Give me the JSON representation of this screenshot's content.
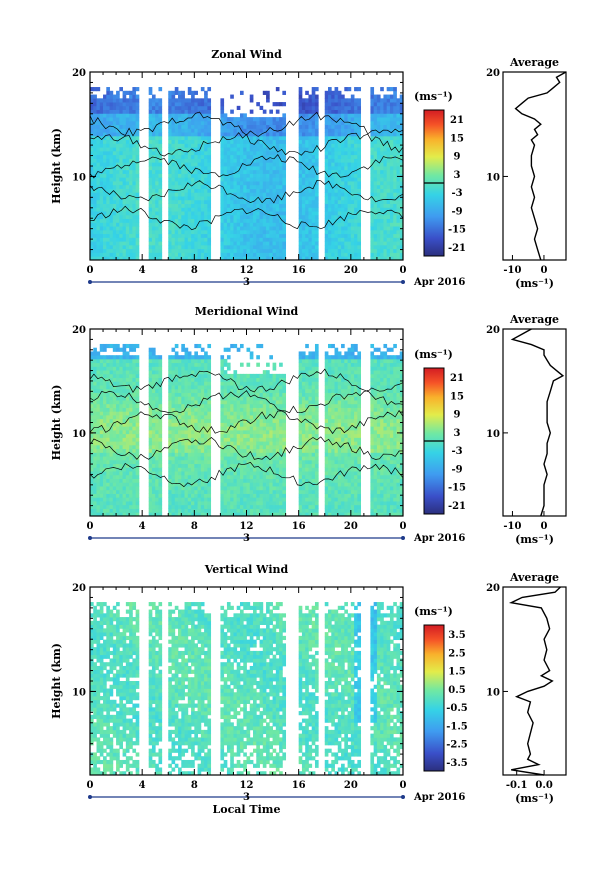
{
  "chart_data": [
    {
      "type": "heatmap",
      "title": "Zonal Wind",
      "ylabel": "Height (km)",
      "x_ticks": [
        "0",
        "4",
        "8",
        "12",
        "16",
        "20",
        "0"
      ],
      "y_ticks": [
        "20",
        "10"
      ],
      "xlim": [
        0,
        24
      ],
      "ylim": [
        2,
        20
      ],
      "date_marker": "3",
      "date_label": "Apr 2016",
      "colorbar": {
        "unit": "(ms⁻¹)",
        "ticks": [
          "21",
          "15",
          "9",
          "3",
          "-3",
          "-9",
          "-15",
          "-21"
        ],
        "range": [
          -24,
          24
        ]
      },
      "profile": {
        "title": "Average",
        "x_ticks": [
          "-10",
          "0"
        ],
        "xlabel": "(ms⁻¹)",
        "y_ticks": [
          "20",
          "10"
        ],
        "xlim": [
          -13,
          7
        ],
        "y": [
          2,
          3,
          4,
          5,
          6,
          7,
          8,
          9,
          10,
          11,
          12,
          13,
          13.5,
          14,
          14.5,
          15,
          15.5,
          16,
          16.5,
          17,
          17.5,
          18,
          18.5,
          19,
          19.5,
          20
        ],
        "value": [
          -1,
          -2,
          -3,
          -2,
          -3,
          -4,
          -3,
          -4,
          -3,
          -4,
          -4,
          -3,
          -4,
          -2,
          -3,
          -1,
          -3,
          -7,
          -9,
          -7,
          -5,
          1,
          3,
          5,
          4,
          7
        ]
      }
    },
    {
      "type": "heatmap",
      "title": "Meridional Wind",
      "ylabel": "Height (km)",
      "x_ticks": [
        "0",
        "4",
        "8",
        "12",
        "16",
        "20",
        "0"
      ],
      "y_ticks": [
        "20",
        "10"
      ],
      "xlim": [
        0,
        24
      ],
      "ylim": [
        2,
        20
      ],
      "date_marker": "3",
      "date_label": "Apr 2016",
      "colorbar": {
        "unit": "(ms⁻¹)",
        "ticks": [
          "21",
          "15",
          "9",
          "3",
          "-3",
          "-9",
          "-15",
          "-21"
        ],
        "range": [
          -24,
          24
        ]
      },
      "profile": {
        "title": "Average",
        "x_ticks": [
          "-10",
          "0"
        ],
        "xlabel": "(ms⁻¹)",
        "y_ticks": [
          "20",
          "10"
        ],
        "xlim": [
          -13,
          7
        ],
        "y": [
          2,
          3,
          4,
          5,
          6,
          7,
          8,
          9,
          10,
          11,
          12,
          13,
          14,
          15,
          15.5,
          16,
          16.5,
          17,
          17.5,
          18,
          18.5,
          19,
          19.5,
          20
        ],
        "value": [
          -1,
          0,
          0,
          0,
          1,
          0,
          1,
          1,
          2,
          1,
          1,
          1,
          2,
          3,
          6,
          4,
          2,
          1,
          0,
          0,
          -4,
          -10,
          -7,
          -4
        ]
      }
    },
    {
      "type": "heatmap",
      "title": "Vertical Wind",
      "ylabel": "Height (km)",
      "xlabel": "Local Time",
      "x_ticks": [
        "0",
        "4",
        "8",
        "12",
        "16",
        "20",
        "0"
      ],
      "y_ticks": [
        "20",
        "10"
      ],
      "xlim": [
        0,
        24
      ],
      "ylim": [
        2,
        20
      ],
      "date_marker": "3",
      "date_label": "Apr 2016",
      "colorbar": {
        "unit": "(ms⁻¹)",
        "ticks": [
          "3.5",
          "2.5",
          "1.5",
          "0.5",
          "-0.5",
          "-1.5",
          "-2.5",
          "-3.5"
        ],
        "range": [
          -4,
          4
        ]
      },
      "profile": {
        "title": "Average",
        "x_ticks": [
          "-0.1",
          "0.0"
        ],
        "xlabel": "(ms⁻¹)",
        "y_ticks": [
          "20",
          "10"
        ],
        "xlim": [
          -0.15,
          0.08
        ],
        "y": [
          2,
          2.5,
          3,
          3.5,
          4,
          5,
          6,
          7,
          8,
          9,
          9.5,
          10,
          10.5,
          11,
          11.5,
          12,
          13,
          14,
          15,
          16,
          17,
          18,
          18.5,
          19,
          19.5,
          20
        ],
        "value": [
          0.0,
          -0.12,
          -0.02,
          -0.06,
          -0.05,
          -0.06,
          -0.05,
          -0.04,
          -0.06,
          -0.05,
          -0.1,
          -0.06,
          0.0,
          0.03,
          -0.01,
          0.02,
          0.0,
          0.01,
          0.0,
          0.02,
          0.01,
          -0.01,
          -0.12,
          -0.08,
          0.04,
          0.06
        ]
      }
    }
  ]
}
